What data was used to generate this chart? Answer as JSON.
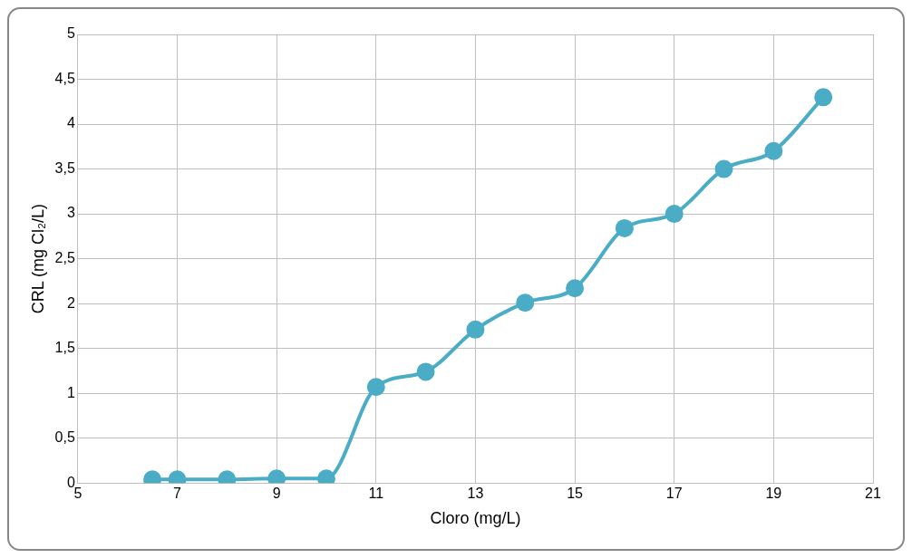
{
  "chart_data": {
    "type": "line",
    "xlabel": "Cloro (mg/L)",
    "ylabel": "CRL (mg Cl₂/L)",
    "x": [
      6.5,
      7,
      8,
      9,
      10,
      11,
      12,
      13,
      14,
      15,
      16,
      17,
      18,
      19,
      20
    ],
    "series": [
      {
        "color": "#4bacc6",
        "values": [
          0.04,
          0.04,
          0.04,
          0.05,
          0.05,
          1.07,
          1.24,
          1.71,
          2.01,
          2.17,
          2.84,
          3.0,
          3.5,
          3.7,
          4.3
        ]
      }
    ],
    "xlim": [
      5,
      21
    ],
    "xticks": [
      5,
      7,
      9,
      11,
      13,
      15,
      17,
      19,
      21
    ],
    "ylim": [
      0,
      5
    ],
    "yticks": [
      0,
      {
        "value": 0.5,
        "label": "0,5"
      },
      1,
      {
        "value": 1.5,
        "label": "1,5"
      },
      2,
      {
        "value": 2.5,
        "label": "2,5"
      },
      3,
      {
        "value": 3.5,
        "label": "3,5"
      },
      4,
      {
        "value": 4.5,
        "label": "4,5"
      },
      5
    ],
    "grid": true,
    "marker": "circle",
    "line_style": "solid",
    "legend": false
  }
}
